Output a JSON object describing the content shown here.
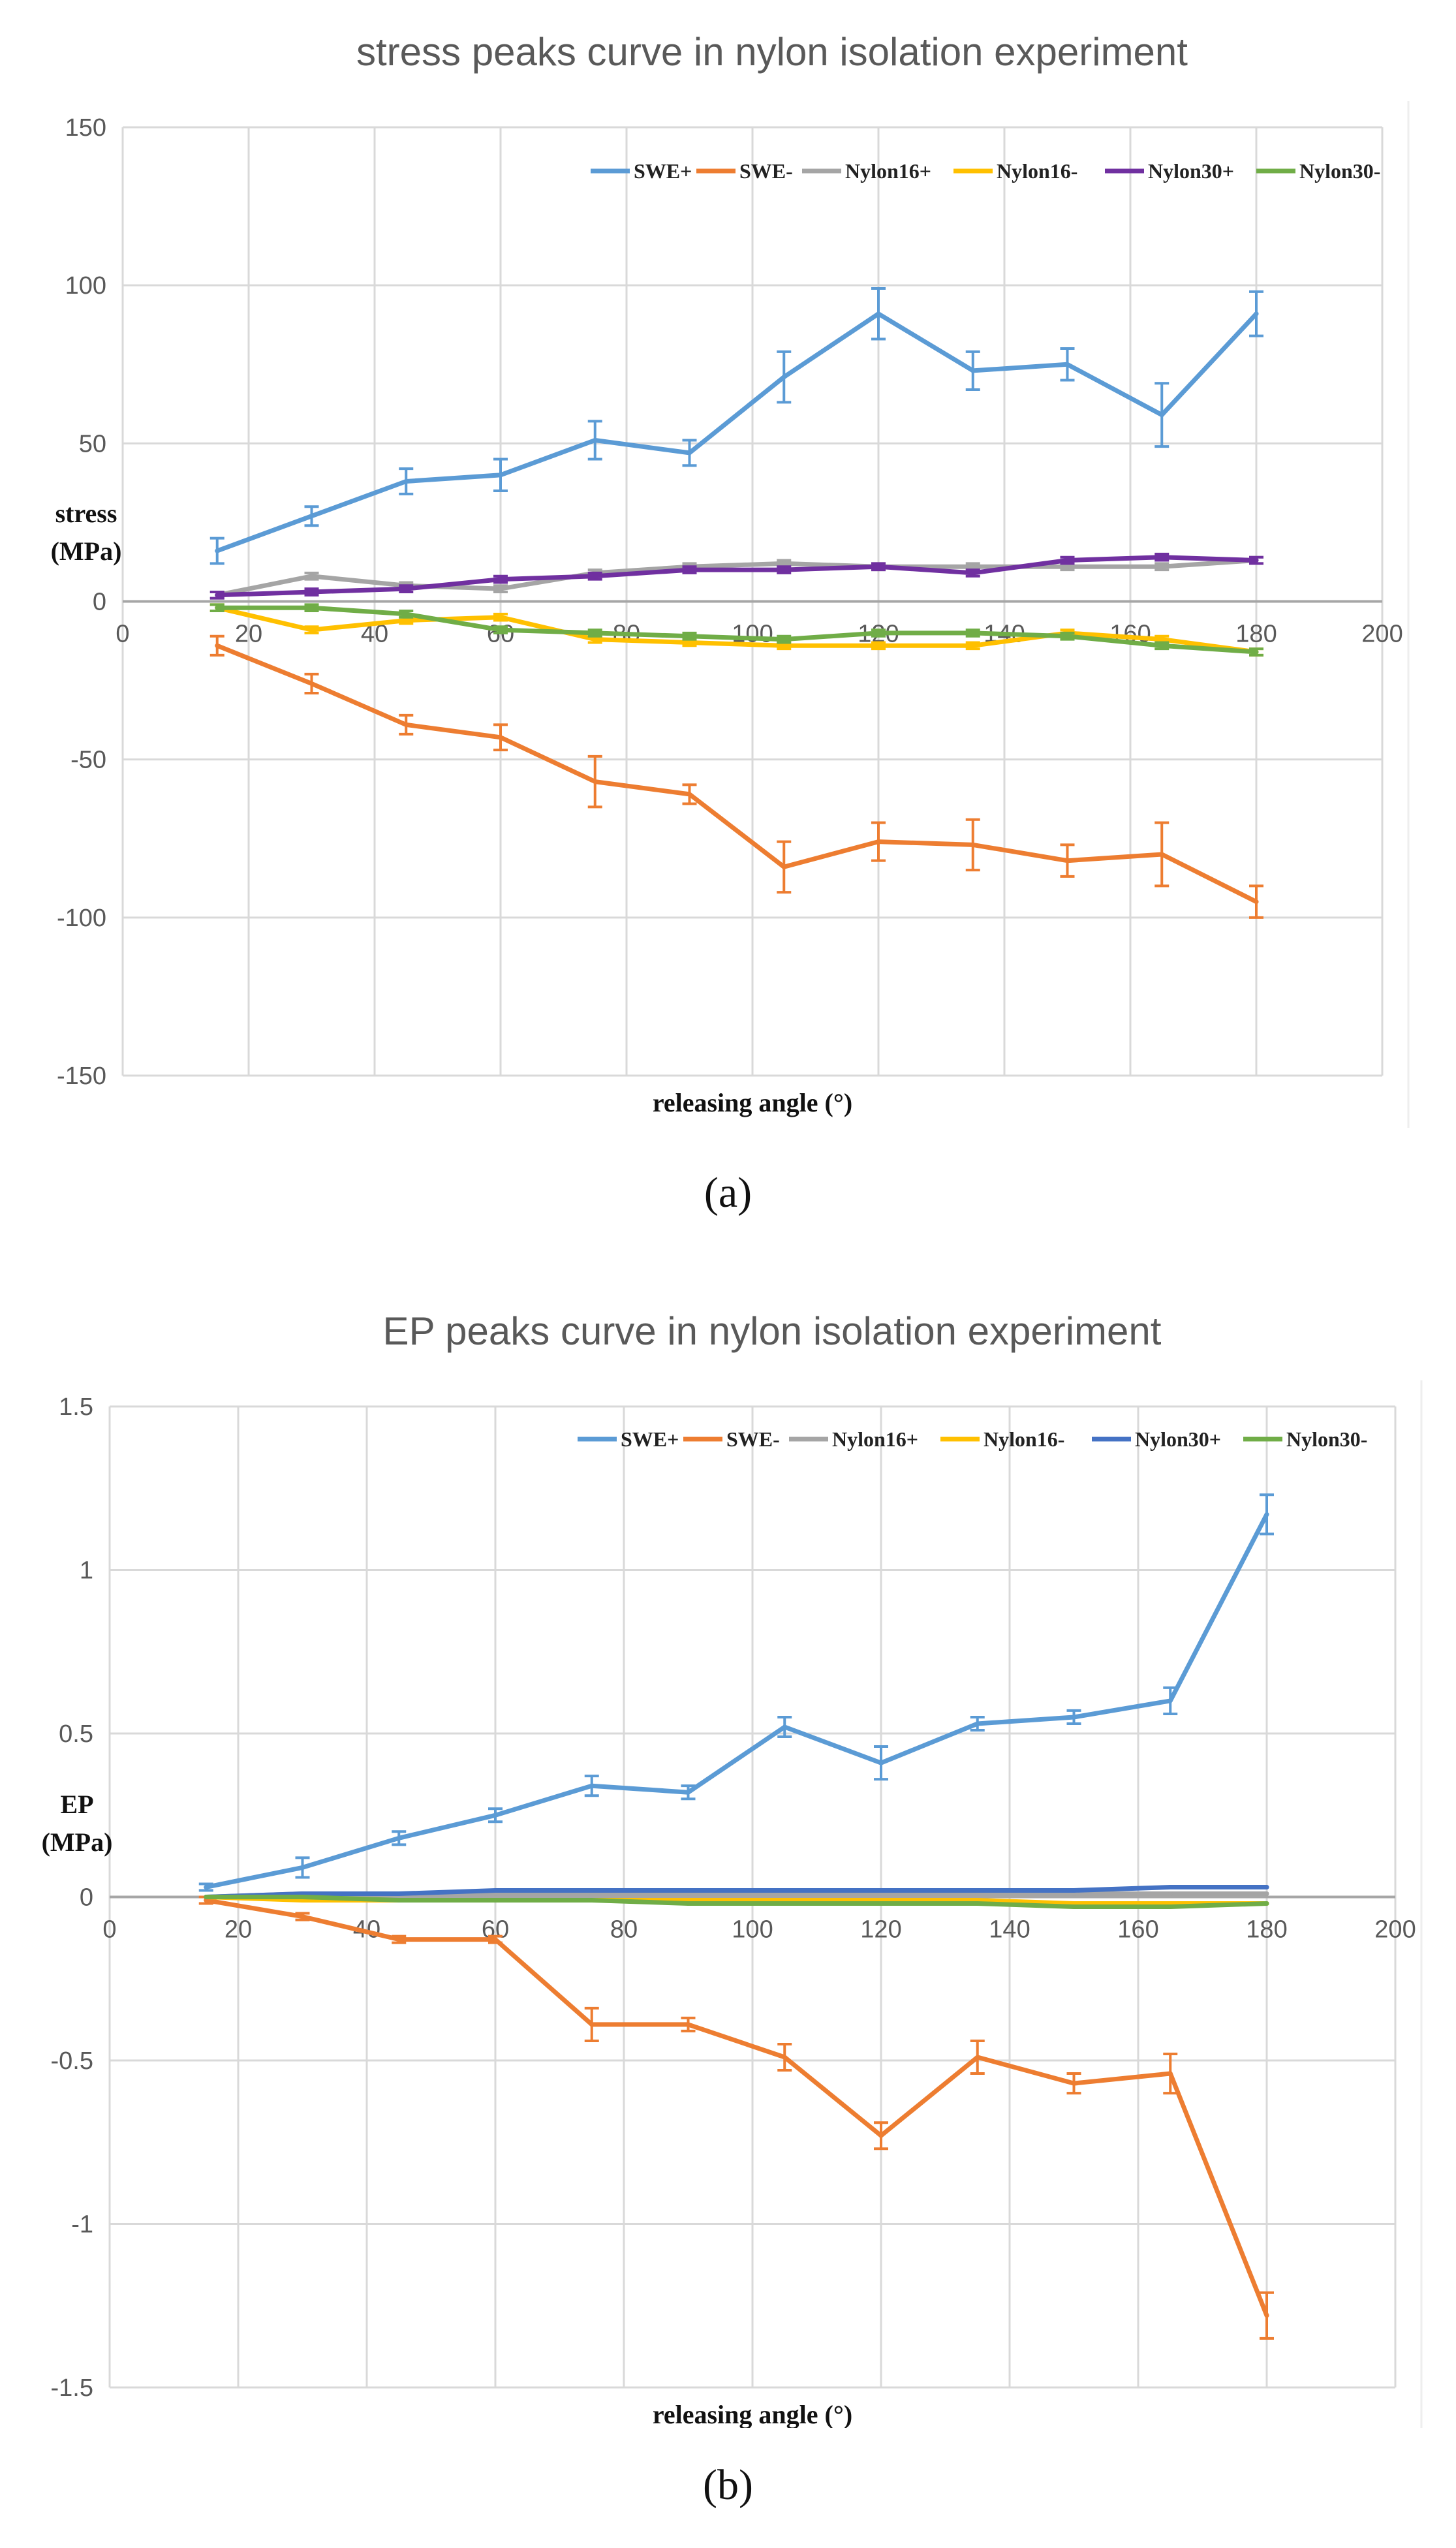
{
  "captions": [
    "(a)",
    "(b)"
  ],
  "chart_data": [
    {
      "type": "line",
      "title": "stress peaks curve in nylon isolation experiment",
      "xlabel": "releasing angle (°)",
      "ylabel": "stress\n(MPa)",
      "xlim": [
        0,
        200
      ],
      "ylim": [
        -150,
        150
      ],
      "xticks": [
        0,
        20,
        40,
        60,
        80,
        100,
        120,
        140,
        160,
        180,
        200
      ],
      "yticks": [
        -150,
        -100,
        -50,
        0,
        50,
        100,
        150
      ],
      "grid": true,
      "legend": "top-right",
      "x": [
        15,
        30,
        45,
        60,
        75,
        90,
        105,
        120,
        135,
        150,
        165,
        180
      ],
      "series": [
        {
          "name": "SWE+",
          "color": "#5b9bd5",
          "error_bars": true,
          "values": [
            16,
            27,
            38,
            40,
            51,
            47,
            71,
            91,
            73,
            75,
            59,
            91
          ],
          "errors": [
            4,
            3,
            4,
            5,
            6,
            4,
            8,
            8,
            6,
            5,
            10,
            7
          ]
        },
        {
          "name": "SWE-",
          "color": "#ed7d31",
          "error_bars": true,
          "values": [
            -14,
            -26,
            -39,
            -43,
            -57,
            -61,
            -84,
            -76,
            -77,
            -82,
            -80,
            -95
          ],
          "errors": [
            3,
            3,
            3,
            4,
            8,
            3,
            8,
            6,
            8,
            5,
            10,
            5
          ]
        },
        {
          "name": "Nylon16+",
          "color": "#a5a5a5",
          "error_bars": true,
          "values": [
            2,
            8,
            5,
            4,
            9,
            11,
            12,
            11,
            11,
            11,
            11,
            13
          ],
          "errors": [
            1,
            1,
            1,
            1,
            1,
            1,
            1,
            1,
            1,
            1,
            1,
            1
          ]
        },
        {
          "name": "Nylon16-",
          "color": "#ffc000",
          "error_bars": true,
          "values": [
            -2,
            -9,
            -6,
            -5,
            -12,
            -13,
            -14,
            -14,
            -14,
            -10,
            -12,
            -16
          ],
          "errors": [
            1,
            1,
            1,
            1,
            1,
            1,
            1,
            1,
            1,
            1,
            1,
            1
          ]
        },
        {
          "name": "Nylon30+",
          "color": "#7030a0",
          "error_bars": true,
          "values": [
            2,
            3,
            4,
            7,
            8,
            10,
            10,
            11,
            9,
            13,
            14,
            13
          ],
          "errors": [
            1,
            1,
            1,
            1,
            1,
            1,
            1,
            1,
            1,
            1,
            1,
            1
          ]
        },
        {
          "name": "Nylon30-",
          "color": "#70ad47",
          "error_bars": true,
          "values": [
            -2,
            -2,
            -4,
            -9,
            -10,
            -11,
            -12,
            -10,
            -10,
            -11,
            -14,
            -16
          ],
          "errors": [
            1,
            1,
            1,
            1,
            1,
            1,
            1,
            1,
            1,
            1,
            1,
            1
          ]
        }
      ]
    },
    {
      "type": "line",
      "title": "EP peaks curve in nylon isolation experiment",
      "xlabel": "releasing angle (°)",
      "ylabel": "EP\n(MPa)",
      "xlim": [
        0,
        200
      ],
      "ylim": [
        -1.5,
        1.5
      ],
      "xticks": [
        0,
        20,
        40,
        60,
        80,
        100,
        120,
        140,
        160,
        180,
        200
      ],
      "yticks": [
        -1.5,
        -1,
        -0.5,
        0,
        0.5,
        1,
        1.5
      ],
      "grid": true,
      "legend": "top-right",
      "x": [
        15,
        30,
        45,
        60,
        75,
        90,
        105,
        120,
        135,
        150,
        165,
        180
      ],
      "series": [
        {
          "name": "SWE+",
          "color": "#5b9bd5",
          "error_bars": true,
          "values": [
            0.03,
            0.09,
            0.18,
            0.25,
            0.34,
            0.32,
            0.52,
            0.41,
            0.53,
            0.55,
            0.6,
            1.17
          ],
          "errors": [
            0.01,
            0.03,
            0.02,
            0.02,
            0.03,
            0.02,
            0.03,
            0.05,
            0.02,
            0.02,
            0.04,
            0.06
          ]
        },
        {
          "name": "SWE-",
          "color": "#ed7d31",
          "error_bars": true,
          "values": [
            -0.01,
            -0.06,
            -0.13,
            -0.13,
            -0.39,
            -0.39,
            -0.49,
            -0.73,
            -0.49,
            -0.57,
            -0.54,
            -1.28
          ],
          "errors": [
            0.01,
            0.01,
            0.01,
            0.01,
            0.05,
            0.02,
            0.04,
            0.04,
            0.05,
            0.03,
            0.06,
            0.07
          ]
        },
        {
          "name": "Nylon16+",
          "color": "#a5a5a5",
          "error_bars": false,
          "values": [
            0,
            0.01,
            0,
            0.01,
            0.01,
            0.01,
            0.01,
            0.01,
            0.01,
            0.01,
            0.01,
            0.01
          ]
        },
        {
          "name": "Nylon16-",
          "color": "#ffc000",
          "error_bars": false,
          "values": [
            0,
            -0.01,
            -0.01,
            -0.01,
            -0.01,
            -0.01,
            -0.01,
            -0.01,
            -0.01,
            -0.02,
            -0.02,
            -0.02
          ]
        },
        {
          "name": "Nylon30+",
          "color": "#4472c4",
          "error_bars": false,
          "values": [
            0,
            0.01,
            0.01,
            0.02,
            0.02,
            0.02,
            0.02,
            0.02,
            0.02,
            0.02,
            0.03,
            0.03
          ]
        },
        {
          "name": "Nylon30-",
          "color": "#70ad47",
          "error_bars": false,
          "values": [
            0,
            0,
            -0.01,
            -0.01,
            -0.01,
            -0.02,
            -0.02,
            -0.02,
            -0.02,
            -0.03,
            -0.03,
            -0.02
          ]
        }
      ]
    }
  ]
}
